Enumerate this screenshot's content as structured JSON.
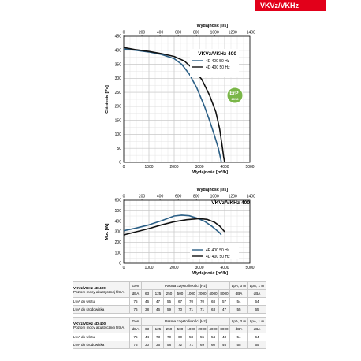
{
  "header": {
    "badge": "VKVz/VKHz"
  },
  "chart_data": [
    {
      "type": "line",
      "title": "VKVz/VKHz 400",
      "ylabel": "Ciśnienie [Pa]",
      "xlabel_bottom": "Wydajność [m³/h]",
      "xlabel_top": "Wydajność [l/s]",
      "xlim": [
        0,
        5000
      ],
      "ylim": [
        0,
        450
      ],
      "x_ticks": [
        "0",
        "1000",
        "2000",
        "3000",
        "4000",
        "5000"
      ],
      "y_ticks": [
        "0",
        "50",
        "100",
        "150",
        "200",
        "250",
        "300",
        "350",
        "400",
        "450"
      ],
      "top_ticks": [
        "0",
        "200",
        "400",
        "600",
        "800",
        "1000",
        "1200",
        "1400"
      ],
      "top_range": [
        0,
        1388.9
      ],
      "grid": true,
      "legend_position": "top-right",
      "badge": "ErP 2018",
      "series": [
        {
          "name": "4E 400 50 Hz",
          "color": "#2b5f86",
          "x": [
            0,
            500,
            1000,
            1500,
            2000,
            2300,
            2600,
            2900,
            3200,
            3400,
            3600,
            3750,
            3800,
            3850,
            3870
          ],
          "y": [
            405,
            400,
            394,
            385,
            370,
            350,
            315,
            265,
            200,
            150,
            95,
            50,
            30,
            10,
            0
          ]
        },
        {
          "name": "4D 400 50 Hz",
          "color": "#111111",
          "x": [
            0,
            500,
            1000,
            1500,
            2000,
            2400,
            2800,
            3100,
            3400,
            3650,
            3800,
            3900,
            3960,
            4000
          ],
          "y": [
            410,
            402,
            396,
            388,
            378,
            362,
            330,
            295,
            240,
            180,
            120,
            60,
            20,
            0
          ]
        }
      ]
    },
    {
      "type": "line",
      "title": "VKVz/VKHz 400",
      "ylabel": "Moc [W]",
      "xlabel_bottom": "Wydajność [m³/h]",
      "xlabel_top": "Wydajność [l/s]",
      "xlim": [
        0,
        5000
      ],
      "ylim": [
        0,
        600
      ],
      "x_ticks": [
        "0",
        "1000",
        "2000",
        "3000",
        "4000",
        "5000"
      ],
      "y_ticks": [
        "0",
        "100",
        "200",
        "300",
        "400",
        "500",
        "600"
      ],
      "top_ticks": [
        "0",
        "200",
        "400",
        "600",
        "800",
        "1000",
        "1200",
        "1400"
      ],
      "top_range": [
        0,
        1388.9
      ],
      "grid": true,
      "legend_position": "bottom-right",
      "series": [
        {
          "name": "4E 400 50 Hz",
          "color": "#2b5f86",
          "x": [
            0,
            500,
            1000,
            1500,
            2000,
            2300,
            2600,
            2900,
            3200,
            3500,
            3800,
            3870
          ],
          "y": [
            310,
            335,
            365,
            405,
            450,
            458,
            452,
            430,
            400,
            350,
            290,
            270
          ]
        },
        {
          "name": "4D 400 50 Hz",
          "color": "#111111",
          "x": [
            0,
            500,
            1000,
            1500,
            2000,
            2500,
            3000,
            3300,
            3600,
            3800,
            4000
          ],
          "y": [
            270,
            300,
            330,
            365,
            395,
            415,
            425,
            418,
            390,
            355,
            300
          ]
        }
      ]
    }
  ],
  "tables": [
    {
      "model": "VKVz/VKHz 4E 400",
      "subtitle": "Poziom mocy akustycznej filtr A",
      "gen_label": "Gen",
      "band_label": "Pasma częstotliwości [Hz]",
      "lpa3_label": "LpA, 3 m",
      "lpa1_label": "LpA, 1 m",
      "unit": "dBA",
      "bands": [
        "63",
        "125",
        "250",
        "500",
        "1000",
        "2000",
        "4000",
        "8000"
      ],
      "rows": [
        {
          "label": "LwA do wlotu",
          "gen": "75",
          "values": [
            "46",
            "47",
            "55",
            "67",
            "70",
            "70",
            "68",
            "57"
          ],
          "lpa3": "54",
          "lpa1": "64"
        },
        {
          "label": "LwA do środowiska",
          "gen": "76",
          "values": [
            "38",
            "46",
            "59",
            "70",
            "71",
            "71",
            "63",
            "47"
          ],
          "lpa3": "55",
          "lpa1": "65"
        }
      ]
    },
    {
      "model": "VKVz/VKHz 4D 400",
      "subtitle": "Poziom mocy akustycznej filtr A",
      "gen_label": "Gen",
      "band_label": "Pasma częstotliwości [Hz]",
      "lpa3_label": "LpA, 3 m",
      "lpa1_label": "LpA, 1 m",
      "unit": "dBA",
      "bands": [
        "63",
        "125",
        "250",
        "500",
        "1000",
        "2000",
        "4000",
        "8000"
      ],
      "rows": [
        {
          "label": "LwA do wlotu",
          "gen": "75",
          "values": [
            "44",
            "73",
            "70",
            "60",
            "58",
            "55",
            "54",
            "43"
          ],
          "lpa3": "54",
          "lpa1": "64"
        },
        {
          "label": "LwA do środowiska",
          "gen": "76",
          "values": [
            "30",
            "36",
            "58",
            "72",
            "71",
            "69",
            "60",
            "46"
          ],
          "lpa3": "55",
          "lpa1": "65"
        }
      ]
    }
  ]
}
